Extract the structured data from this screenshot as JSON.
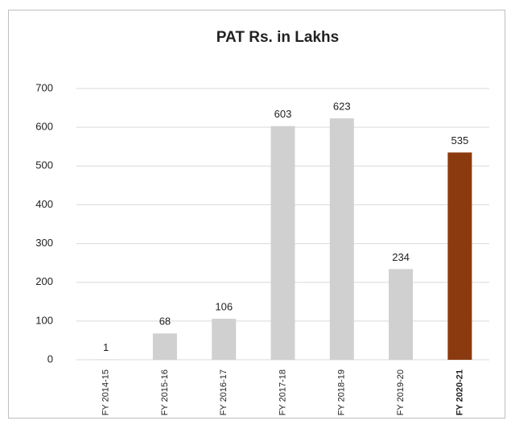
{
  "chart_data": {
    "type": "bar",
    "title": "PAT Rs. in Lakhs",
    "categories": [
      "FY 2014-15",
      "FY 2015-16",
      "FY 2016-17",
      "FY 2017-18",
      "FY 2018-19",
      "FY 2019-20",
      "FY 2020-21"
    ],
    "values": [
      1,
      68,
      106,
      603,
      623,
      234,
      535
    ],
    "colors": [
      "#d0d0d0",
      "#d0d0d0",
      "#d0d0d0",
      "#d0d0d0",
      "#d0d0d0",
      "#d0d0d0",
      "#8b3a0f"
    ],
    "ylim": [
      0,
      700
    ],
    "yticks": [
      0,
      100,
      200,
      300,
      400,
      500,
      600,
      700
    ],
    "grid": true
  }
}
